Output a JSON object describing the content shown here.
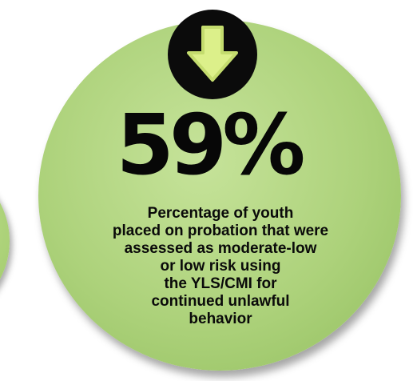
{
  "infographic": {
    "statistic": "59%",
    "description_lines": [
      "Percentage of youth",
      "placed on probation that were",
      "assessed as moderate-low",
      "or low risk using",
      "the YLS/CMI for",
      "continued unlawful",
      "behavior"
    ],
    "icon": "down-arrow-icon",
    "colors": {
      "circle_fill": "#add27b",
      "badge": "#0b0b0b",
      "arrow": "#dcf08a",
      "text": "#0a0a0a"
    }
  }
}
